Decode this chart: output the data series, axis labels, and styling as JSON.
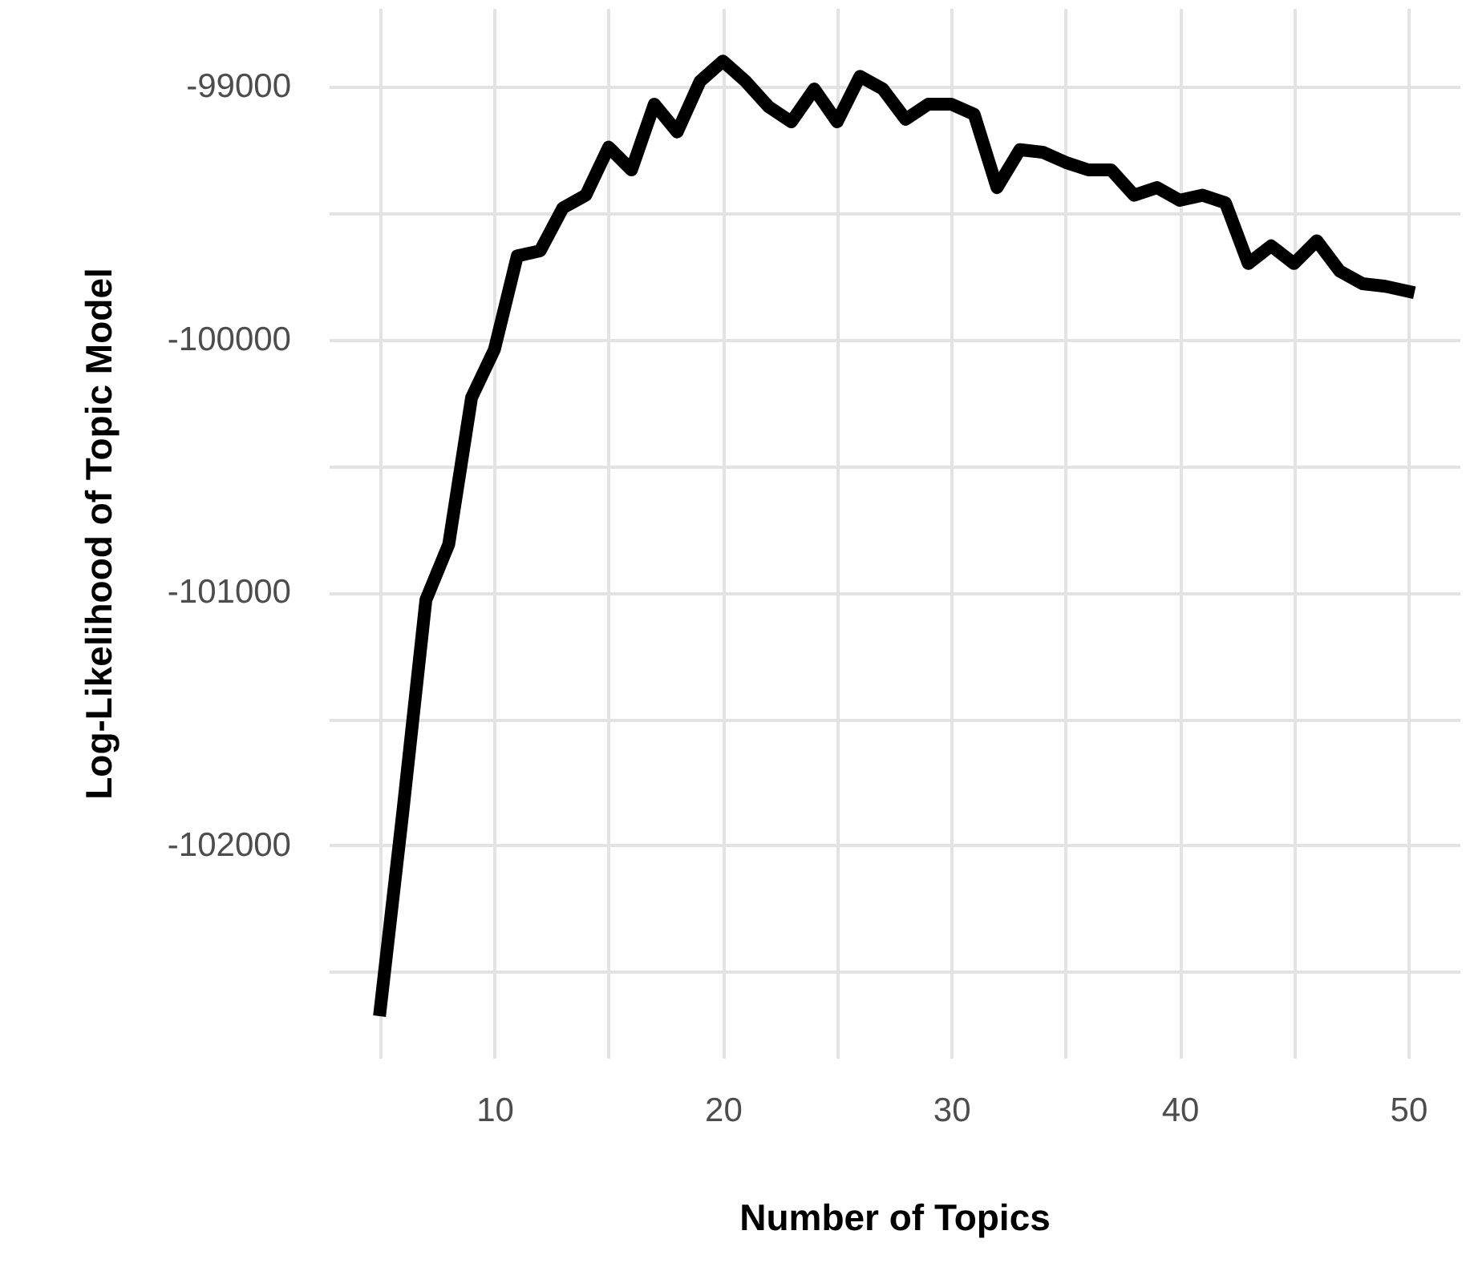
{
  "chart_data": {
    "type": "line",
    "xlabel": "Number of Topics",
    "ylabel": "Log-Likelihood of Topic Model",
    "x": [
      5,
      6,
      7,
      8,
      9,
      10,
      11,
      12,
      13,
      14,
      15,
      16,
      17,
      18,
      19,
      20,
      21,
      22,
      23,
      24,
      25,
      26,
      27,
      28,
      29,
      30,
      31,
      32,
      33,
      34,
      35,
      36,
      37,
      38,
      39,
      40,
      41,
      42,
      43,
      44,
      45,
      46,
      47,
      48,
      49,
      50
    ],
    "series": [
      {
        "color": "#000000",
        "values": [
          -102650,
          -101860,
          -101030,
          -100810,
          -100230,
          -100040,
          -99670,
          -99650,
          -99480,
          -99430,
          -99240,
          -99330,
          -99070,
          -99180,
          -98980,
          -98900,
          -98980,
          -99080,
          -99140,
          -99010,
          -99140,
          -98960,
          -99010,
          -99130,
          -99070,
          -99070,
          -99110,
          -99400,
          -99250,
          -99260,
          -99300,
          -99330,
          -99330,
          -99430,
          -99400,
          -99450,
          -99430,
          -99460,
          -99700,
          -99630,
          -99700,
          -99610,
          -99730,
          -99780,
          -99790,
          -99810
        ]
      }
    ],
    "xlim": [
      2.75,
      52.25
    ],
    "ylim": [
      -102840,
      -98690
    ],
    "xticks": [
      {
        "value": 5,
        "label": null
      },
      10,
      {
        "value": 15,
        "label": null
      },
      20,
      {
        "value": 25,
        "label": null
      },
      30,
      {
        "value": 35,
        "label": null
      },
      40,
      {
        "value": 45,
        "label": null
      },
      50
    ],
    "yticks": [
      {
        "value": -102500,
        "label": null
      },
      -102000,
      {
        "value": -101500,
        "label": null
      },
      -101000,
      {
        "value": -100500,
        "label": null
      },
      -100000,
      {
        "value": -99500,
        "label": null
      },
      -99000
    ],
    "grid": true,
    "line_style": "solid",
    "marker": "none"
  }
}
